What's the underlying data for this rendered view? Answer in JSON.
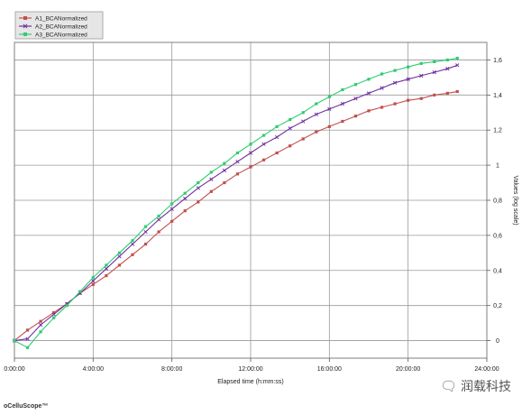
{
  "chart_data": {
    "type": "line",
    "x": [
      "0:00:00",
      "0:40:00",
      "1:20:00",
      "2:00:00",
      "2:40:00",
      "3:20:00",
      "4:00:00",
      "4:40:00",
      "5:20:00",
      "6:00:00",
      "6:40:00",
      "7:20:00",
      "8:00:00",
      "8:40:00",
      "9:20:00",
      "10:00:00",
      "10:40:00",
      "11:20:00",
      "12:00:00",
      "12:40:00",
      "13:20:00",
      "14:00:00",
      "14:40:00",
      "15:20:00",
      "16:00:00",
      "16:40:00",
      "17:20:00",
      "18:00:00",
      "18:40:00",
      "19:20:00",
      "20:00:00",
      "20:40:00",
      "21:20:00",
      "22:00:00",
      "22:30:00"
    ],
    "series": [
      {
        "name": "A1_BCANormalized",
        "color": "#c0504d",
        "marker": "square",
        "values": [
          0.0,
          0.06,
          0.11,
          0.16,
          0.21,
          0.27,
          0.32,
          0.37,
          0.43,
          0.49,
          0.55,
          0.62,
          0.68,
          0.74,
          0.79,
          0.85,
          0.9,
          0.95,
          0.99,
          1.03,
          1.07,
          1.11,
          1.15,
          1.19,
          1.22,
          1.25,
          1.28,
          1.31,
          1.33,
          1.35,
          1.37,
          1.38,
          1.4,
          1.41,
          1.42
        ]
      },
      {
        "name": "A2_BCANormalized",
        "color": "#7030a0",
        "marker": "x",
        "values": [
          0.0,
          0.01,
          0.09,
          0.15,
          0.21,
          0.27,
          0.34,
          0.41,
          0.48,
          0.55,
          0.62,
          0.69,
          0.75,
          0.81,
          0.87,
          0.92,
          0.97,
          1.02,
          1.07,
          1.12,
          1.16,
          1.21,
          1.25,
          1.29,
          1.32,
          1.35,
          1.38,
          1.41,
          1.44,
          1.47,
          1.49,
          1.51,
          1.53,
          1.55,
          1.57
        ]
      },
      {
        "name": "A3_BCANormalized",
        "color": "#2ecc71",
        "marker": "square",
        "values": [
          0.0,
          -0.04,
          0.05,
          0.13,
          0.2,
          0.28,
          0.36,
          0.43,
          0.5,
          0.57,
          0.65,
          0.71,
          0.78,
          0.84,
          0.9,
          0.96,
          1.01,
          1.07,
          1.12,
          1.17,
          1.22,
          1.26,
          1.3,
          1.35,
          1.39,
          1.43,
          1.46,
          1.49,
          1.52,
          1.54,
          1.56,
          1.58,
          1.59,
          1.6,
          1.61
        ]
      }
    ],
    "xlabel": "Elapsed time (h:mm:ss)",
    "ylabel": "Values (log scale)",
    "x_ticks": [
      "0:00:00",
      "4:00:00",
      "8:00:00",
      "12:00:00",
      "16:00:00",
      "20:00:00",
      "24:00:00"
    ],
    "x_tick_hours": [
      0,
      4,
      8,
      12,
      16,
      20,
      24
    ],
    "xlim_hours": [
      0,
      24
    ],
    "y_ticks": [
      "0",
      "0,2",
      "0,4",
      "0,6",
      "0,8",
      "1",
      "1,2",
      "1,4",
      "1,6"
    ],
    "y_tick_values": [
      0,
      0.2,
      0.4,
      0.6,
      0.8,
      1.0,
      1.2,
      1.4,
      1.6
    ],
    "ylim": [
      -0.1,
      1.7
    ],
    "y_axis_position": "right",
    "grid": true,
    "legend_position": "top-left"
  },
  "brand": "oCelluScope™",
  "watermark": "润载科技",
  "watermark_icon": "wechat-icon"
}
